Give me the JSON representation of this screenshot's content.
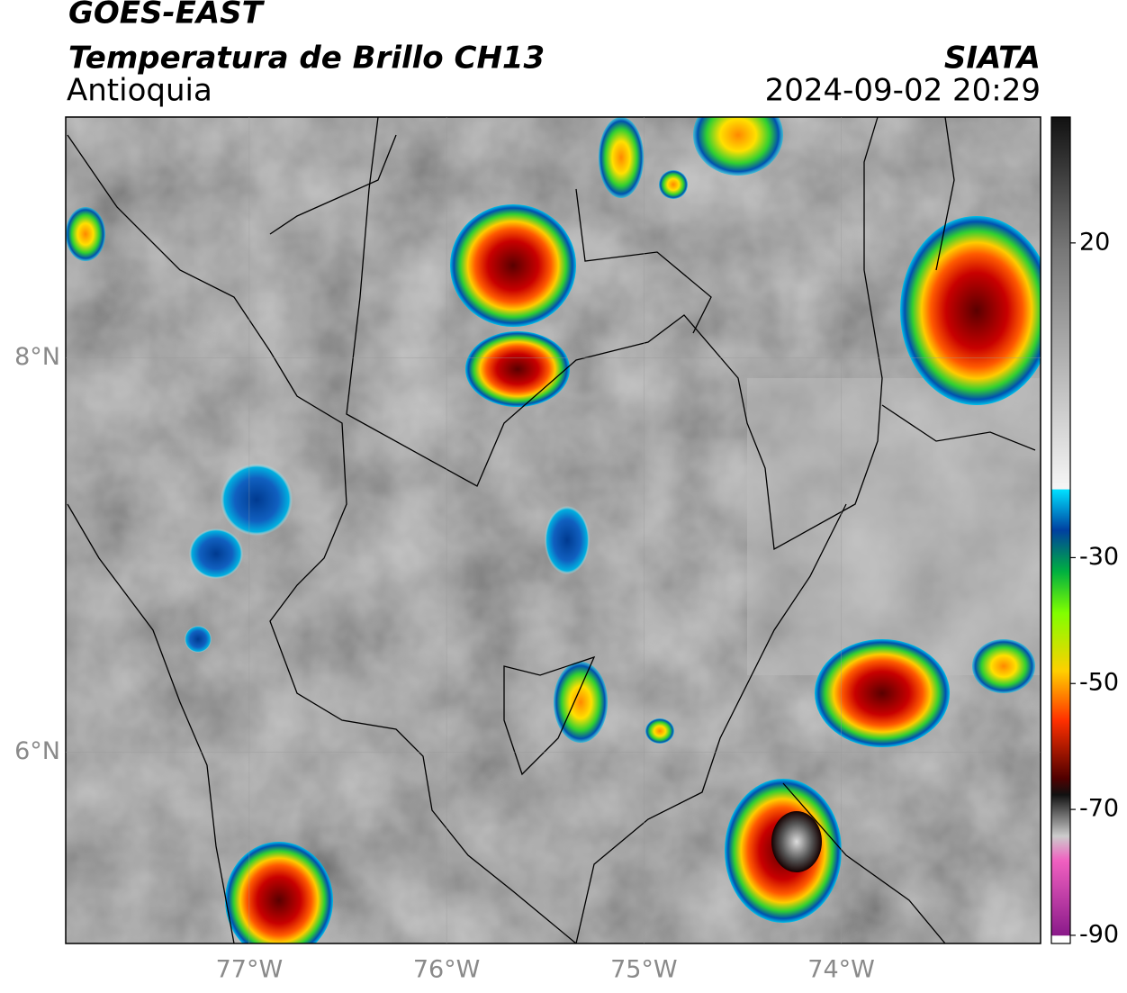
{
  "header": {
    "title": "GOES-EAST",
    "subtitle": "Temperatura de Brillo CH13",
    "region": "Antioquia",
    "source": "SIATA",
    "timestamp": "2024-09-02 20:29"
  },
  "map": {
    "type": "map",
    "xlim": [
      -77.93,
      -72.99
    ],
    "ylim": [
      5.03,
      9.22
    ],
    "xticks": [
      {
        "value": -77,
        "label": "77°W"
      },
      {
        "value": -76,
        "label": "76°W"
      },
      {
        "value": -75,
        "label": "75°W"
      },
      {
        "value": -74,
        "label": "74°W"
      }
    ],
    "yticks": [
      {
        "value": 8,
        "label": "8°N"
      },
      {
        "value": 6,
        "label": "6°N"
      }
    ],
    "colorbar": {
      "lim": [
        -91.3,
        40
      ],
      "ticks": [
        20,
        -30,
        -50,
        -70,
        -90
      ]
    }
  }
}
